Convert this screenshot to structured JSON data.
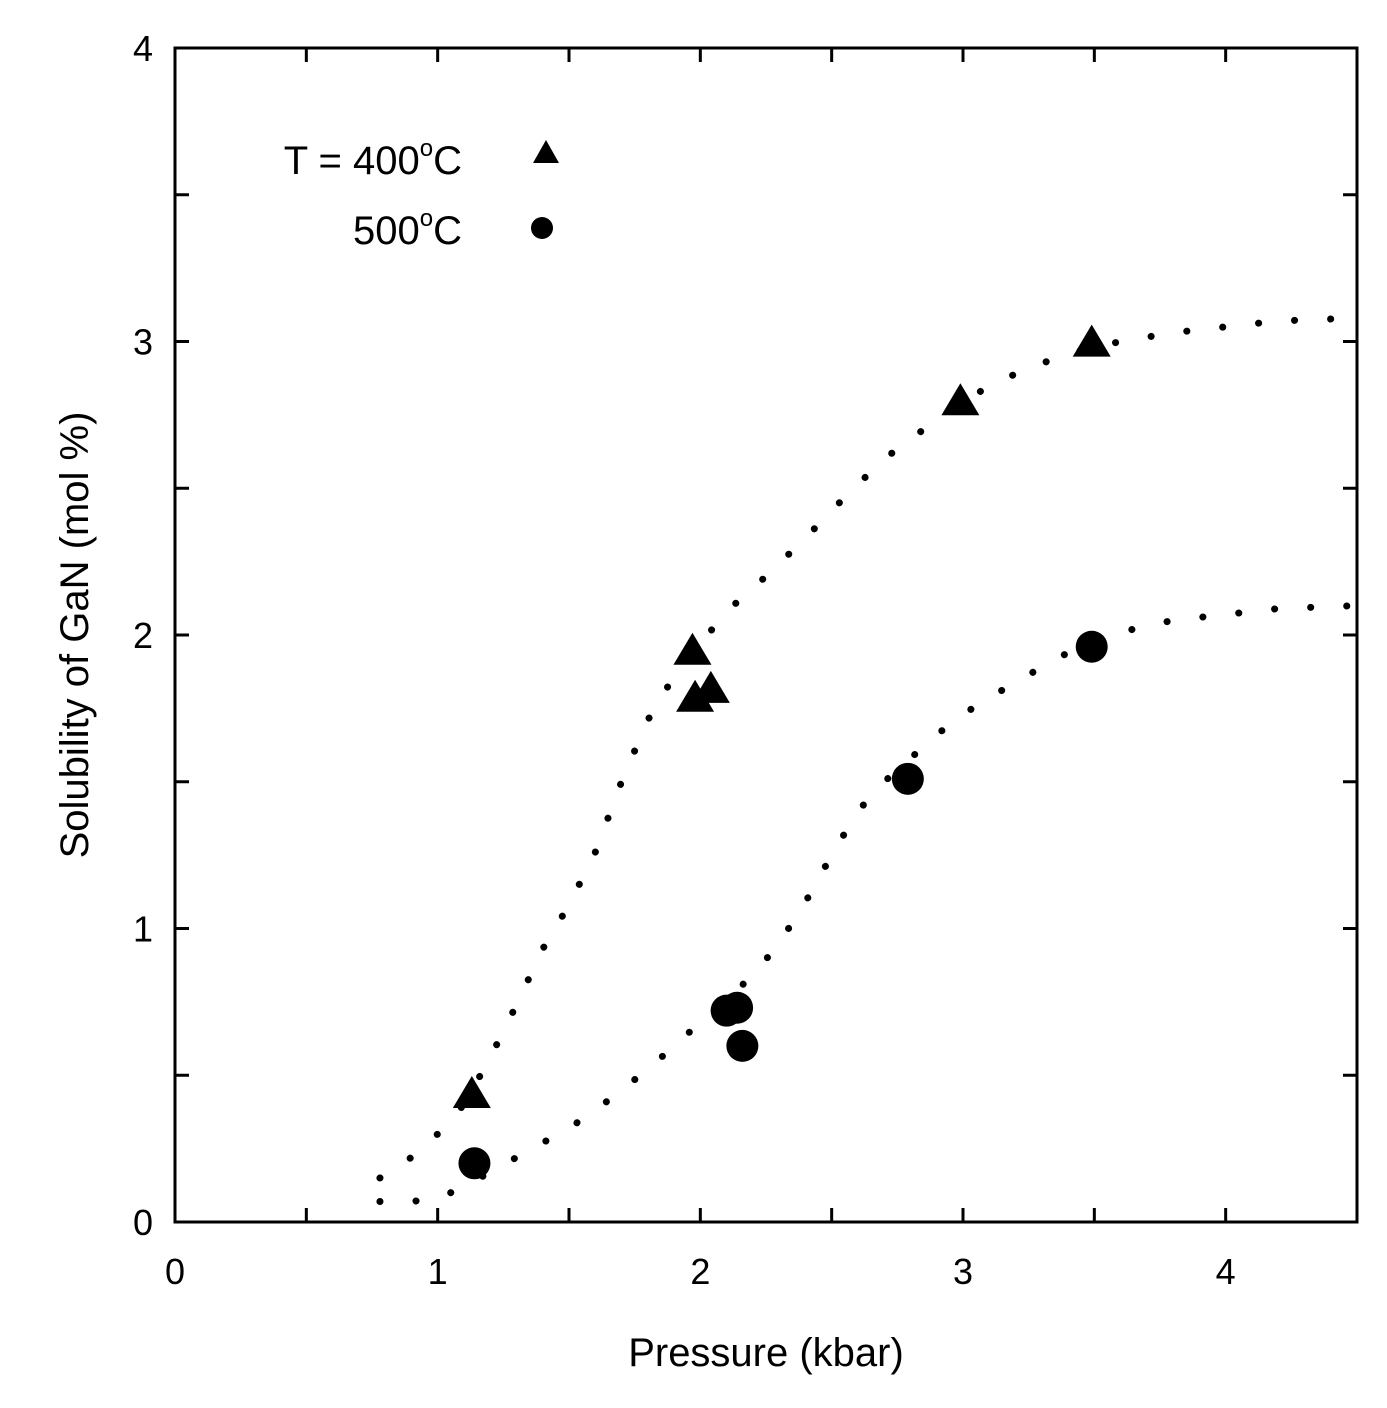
{
  "chart_data": {
    "type": "scatter",
    "xlabel": "Pressure (kbar)",
    "ylabel": "Solubility of GaN (mol %)",
    "xlim": [
      0,
      4.5
    ],
    "ylim": [
      0,
      4
    ],
    "x_ticks": [
      "0",
      "1",
      "2",
      "3",
      "4"
    ],
    "y_ticks": [
      "0",
      "1",
      "2",
      "3",
      "4"
    ],
    "legend_position": "top-left",
    "legend": [
      {
        "prefix": "T = 400",
        "sup": "o",
        "suffix": "C",
        "marker": "triangle"
      },
      {
        "prefix": "500",
        "sup": "o",
        "suffix": "C",
        "marker": "circle"
      }
    ],
    "series": [
      {
        "marker": "triangle",
        "points": [
          [
            1.13,
            0.43
          ],
          [
            1.97,
            1.94
          ],
          [
            1.98,
            1.78
          ],
          [
            2.04,
            1.81
          ],
          [
            2.99,
            2.79
          ],
          [
            3.49,
            2.99
          ]
        ],
        "fit": [
          [
            0.78,
            0.15
          ],
          [
            0.9,
            0.22
          ],
          [
            1.0,
            0.3
          ],
          [
            1.1,
            0.4
          ],
          [
            1.2,
            0.56
          ],
          [
            1.3,
            0.74
          ],
          [
            1.4,
            0.93
          ],
          [
            1.5,
            1.08
          ],
          [
            1.6,
            1.26
          ],
          [
            1.7,
            1.5
          ],
          [
            1.8,
            1.71
          ],
          [
            1.9,
            1.86
          ],
          [
            2.0,
            1.97
          ],
          [
            2.1,
            2.08
          ],
          [
            2.25,
            2.2
          ],
          [
            2.4,
            2.33
          ],
          [
            2.55,
            2.47
          ],
          [
            2.7,
            2.6
          ],
          [
            2.85,
            2.7
          ],
          [
            3.0,
            2.8
          ],
          [
            3.2,
            2.89
          ],
          [
            3.4,
            2.96
          ],
          [
            3.6,
            3.0
          ],
          [
            3.8,
            3.03
          ],
          [
            4.0,
            3.05
          ],
          [
            4.2,
            3.07
          ],
          [
            4.5,
            3.08
          ]
        ]
      },
      {
        "marker": "circle",
        "points": [
          [
            1.14,
            0.2
          ],
          [
            2.1,
            0.72
          ],
          [
            2.14,
            0.73
          ],
          [
            2.16,
            0.6
          ],
          [
            2.79,
            1.51
          ],
          [
            3.49,
            1.96
          ]
        ],
        "fit": [
          [
            0.78,
            0.07
          ],
          [
            0.9,
            0.07
          ],
          [
            1.0,
            0.08
          ],
          [
            1.1,
            0.12
          ],
          [
            1.2,
            0.17
          ],
          [
            1.3,
            0.22
          ],
          [
            1.4,
            0.27
          ],
          [
            1.5,
            0.32
          ],
          [
            1.6,
            0.38
          ],
          [
            1.7,
            0.45
          ],
          [
            1.8,
            0.52
          ],
          [
            1.9,
            0.6
          ],
          [
            2.0,
            0.68
          ],
          [
            2.1,
            0.76
          ],
          [
            2.2,
            0.84
          ],
          [
            2.3,
            0.95
          ],
          [
            2.4,
            1.09
          ],
          [
            2.5,
            1.25
          ],
          [
            2.6,
            1.4
          ],
          [
            2.7,
            1.5
          ],
          [
            2.8,
            1.58
          ],
          [
            2.9,
            1.66
          ],
          [
            3.0,
            1.73
          ],
          [
            3.2,
            1.84
          ],
          [
            3.4,
            1.94
          ],
          [
            3.6,
            2.01
          ],
          [
            3.8,
            2.05
          ],
          [
            4.0,
            2.07
          ],
          [
            4.2,
            2.09
          ],
          [
            4.5,
            2.1
          ]
        ]
      }
    ]
  }
}
